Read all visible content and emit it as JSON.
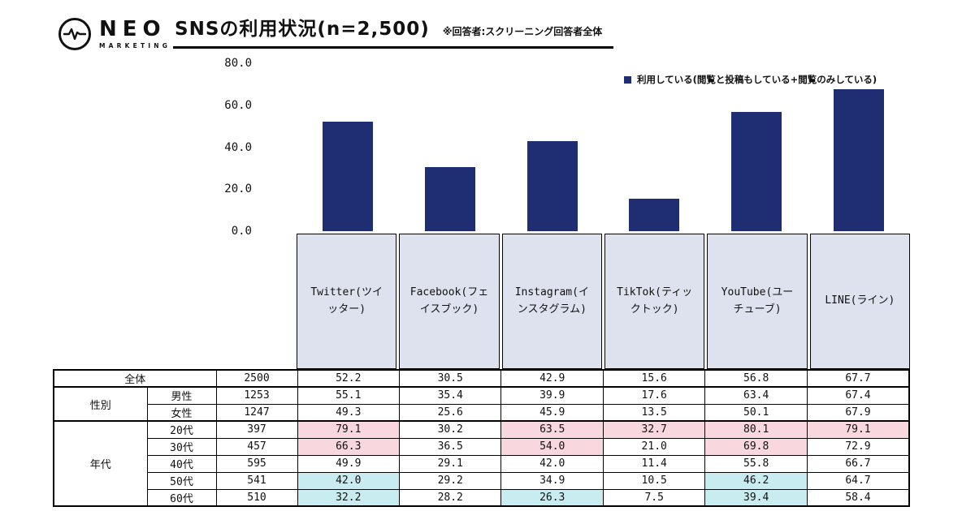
{
  "logo": {
    "name": "NEO",
    "sub": "MARKETING"
  },
  "header": {
    "title": "SNSの利用状況(n=2,500)",
    "note": "※回答者:スクリーニング回答者全体"
  },
  "chart_data": {
    "type": "bar",
    "title": "SNSの利用状況(n=2,500)",
    "categories": [
      "Twitter(ツイッター)",
      "Facebook(フェイスブック)",
      "Instagram(インスタグラム)",
      "TikTok(ティックトック)",
      "YouTube(ユーチューブ)",
      "LINE(ライン)"
    ],
    "values": [
      52.2,
      30.5,
      42.9,
      15.6,
      56.8,
      67.7
    ],
    "xlabel": "",
    "ylabel": "",
    "ylim": [
      0,
      80
    ],
    "yticks": [
      "80.0",
      "60.0",
      "40.0",
      "20.0",
      "0.0"
    ],
    "grid": false,
    "legend_position": "top-right",
    "legend_label": "利用している(閲覧と投稿もしている+閲覧のみしている)",
    "bar_color": "#1f2d72",
    "category_box_color": "#dee2ee",
    "highlight_colors": {
      "pink": "#f9d7de",
      "cyan": "#c8ecef"
    },
    "table": {
      "groups": [
        {
          "label": "全体",
          "span": 1,
          "merged": true
        },
        {
          "label": "性別",
          "span": 2
        },
        {
          "label": "年代",
          "span": 5
        }
      ],
      "rows": [
        {
          "sub": "",
          "n": "2500",
          "values": [
            "52.2",
            "30.5",
            "42.9",
            "15.6",
            "56.8",
            "67.7"
          ],
          "hl": [
            "",
            "",
            "",
            "",
            "",
            ""
          ]
        },
        {
          "sub": "男性",
          "n": "1253",
          "values": [
            "55.1",
            "35.4",
            "39.9",
            "17.6",
            "63.4",
            "67.4"
          ],
          "hl": [
            "",
            "",
            "",
            "",
            "",
            ""
          ]
        },
        {
          "sub": "女性",
          "n": "1247",
          "values": [
            "49.3",
            "25.6",
            "45.9",
            "13.5",
            "50.1",
            "67.9"
          ],
          "hl": [
            "",
            "",
            "",
            "",
            "",
            ""
          ]
        },
        {
          "sub": "20代",
          "n": "397",
          "values": [
            "79.1",
            "30.2",
            "63.5",
            "32.7",
            "80.1",
            "79.1"
          ],
          "hl": [
            "pink",
            "",
            "pink",
            "pink",
            "pink",
            "pink"
          ]
        },
        {
          "sub": "30代",
          "n": "457",
          "values": [
            "66.3",
            "36.5",
            "54.0",
            "21.0",
            "69.8",
            "72.9"
          ],
          "hl": [
            "pink",
            "",
            "pink",
            "",
            "pink",
            ""
          ]
        },
        {
          "sub": "40代",
          "n": "595",
          "values": [
            "49.9",
            "29.1",
            "42.0",
            "11.4",
            "55.8",
            "66.7"
          ],
          "hl": [
            "",
            "",
            "",
            "",
            "",
            ""
          ]
        },
        {
          "sub": "50代",
          "n": "541",
          "values": [
            "42.0",
            "29.2",
            "34.9",
            "10.5",
            "46.2",
            "64.7"
          ],
          "hl": [
            "cyan",
            "",
            "",
            "",
            "cyan",
            ""
          ]
        },
        {
          "sub": "60代",
          "n": "510",
          "values": [
            "32.2",
            "28.2",
            "26.3",
            "7.5",
            "39.4",
            "58.4"
          ],
          "hl": [
            "cyan",
            "",
            "cyan",
            "",
            "cyan",
            ""
          ]
        }
      ]
    }
  }
}
